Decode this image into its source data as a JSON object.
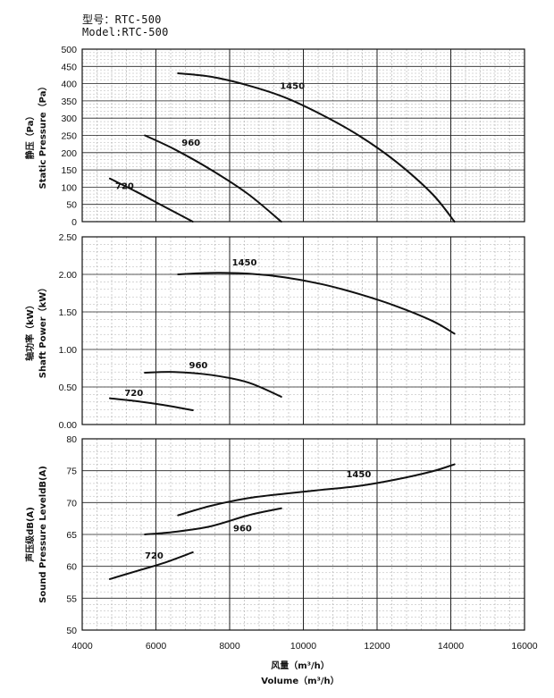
{
  "header": {
    "model_cn": "型号：RTC-500",
    "model_en": "Model:RTC-500"
  },
  "chart_data": [
    {
      "type": "line",
      "ylabel_cn": "静压（Pa）",
      "ylabel_en": "Static Pressure（Pa）",
      "xlim": [
        4000,
        16000
      ],
      "ylim": [
        0,
        500
      ],
      "yticks": [
        "0",
        "50",
        "100",
        "150",
        "200",
        "250",
        "300",
        "350",
        "400",
        "450",
        "500"
      ],
      "grid": true,
      "series": [
        {
          "name": "720",
          "x": [
            4750,
            5500,
            6200,
            7000
          ],
          "y": [
            125,
            85,
            45,
            0
          ]
        },
        {
          "name": "960",
          "x": [
            5700,
            6500,
            7500,
            8500,
            9400
          ],
          "y": [
            250,
            210,
            150,
            80,
            0
          ]
        },
        {
          "name": "1450",
          "x": [
            6600,
            7500,
            8500,
            9500,
            10500,
            11500,
            12500,
            13500,
            14100
          ],
          "y": [
            430,
            420,
            395,
            360,
            310,
            250,
            175,
            80,
            0
          ]
        }
      ]
    },
    {
      "type": "line",
      "ylabel_cn": "轴功率（kW）",
      "ylabel_en": "Shaft Power（kW）",
      "xlim": [
        4000,
        16000
      ],
      "ylim": [
        0,
        2.5
      ],
      "yticks": [
        "0.00",
        "0.50",
        "1.00",
        "1.50",
        "2.00",
        "2.50"
      ],
      "grid": true,
      "series": [
        {
          "name": "720",
          "x": [
            4750,
            5500,
            6200,
            7000
          ],
          "y": [
            0.35,
            0.31,
            0.26,
            0.19
          ]
        },
        {
          "name": "960",
          "x": [
            5700,
            6500,
            7500,
            8500,
            9400
          ],
          "y": [
            0.69,
            0.7,
            0.66,
            0.56,
            0.37
          ]
        },
        {
          "name": "1450",
          "x": [
            6600,
            7500,
            8500,
            9500,
            10500,
            11500,
            12500,
            13500,
            14100
          ],
          "y": [
            2.0,
            2.02,
            2.01,
            1.96,
            1.87,
            1.74,
            1.58,
            1.38,
            1.21
          ]
        }
      ]
    },
    {
      "type": "line",
      "ylabel_cn": "声压级dB(A)",
      "ylabel_en": "Sound Pressure LeveldB(A)",
      "xlabel_cn": "风量（m³/h）",
      "xlabel_en": "Volume（m³/h）",
      "xlim": [
        4000,
        16000
      ],
      "ylim": [
        50,
        80
      ],
      "xticks": [
        "4000",
        "6000",
        "8000",
        "10000",
        "12000",
        "14000",
        "16000"
      ],
      "yticks": [
        "50",
        "55",
        "60",
        "65",
        "70",
        "75",
        "80"
      ],
      "grid": true,
      "series": [
        {
          "name": "720",
          "x": [
            4750,
            5500,
            6200,
            7000
          ],
          "y": [
            58.0,
            59.3,
            60.5,
            62.2
          ]
        },
        {
          "name": "960",
          "x": [
            5700,
            6500,
            7500,
            8500,
            9400
          ],
          "y": [
            65.0,
            65.4,
            66.3,
            68.0,
            69.1
          ]
        },
        {
          "name": "1450",
          "x": [
            6600,
            7500,
            8500,
            9500,
            10500,
            11500,
            12500,
            13500,
            14100
          ],
          "y": [
            68.0,
            69.5,
            70.7,
            71.4,
            72.0,
            72.6,
            73.6,
            74.9,
            76.0
          ]
        }
      ]
    }
  ]
}
